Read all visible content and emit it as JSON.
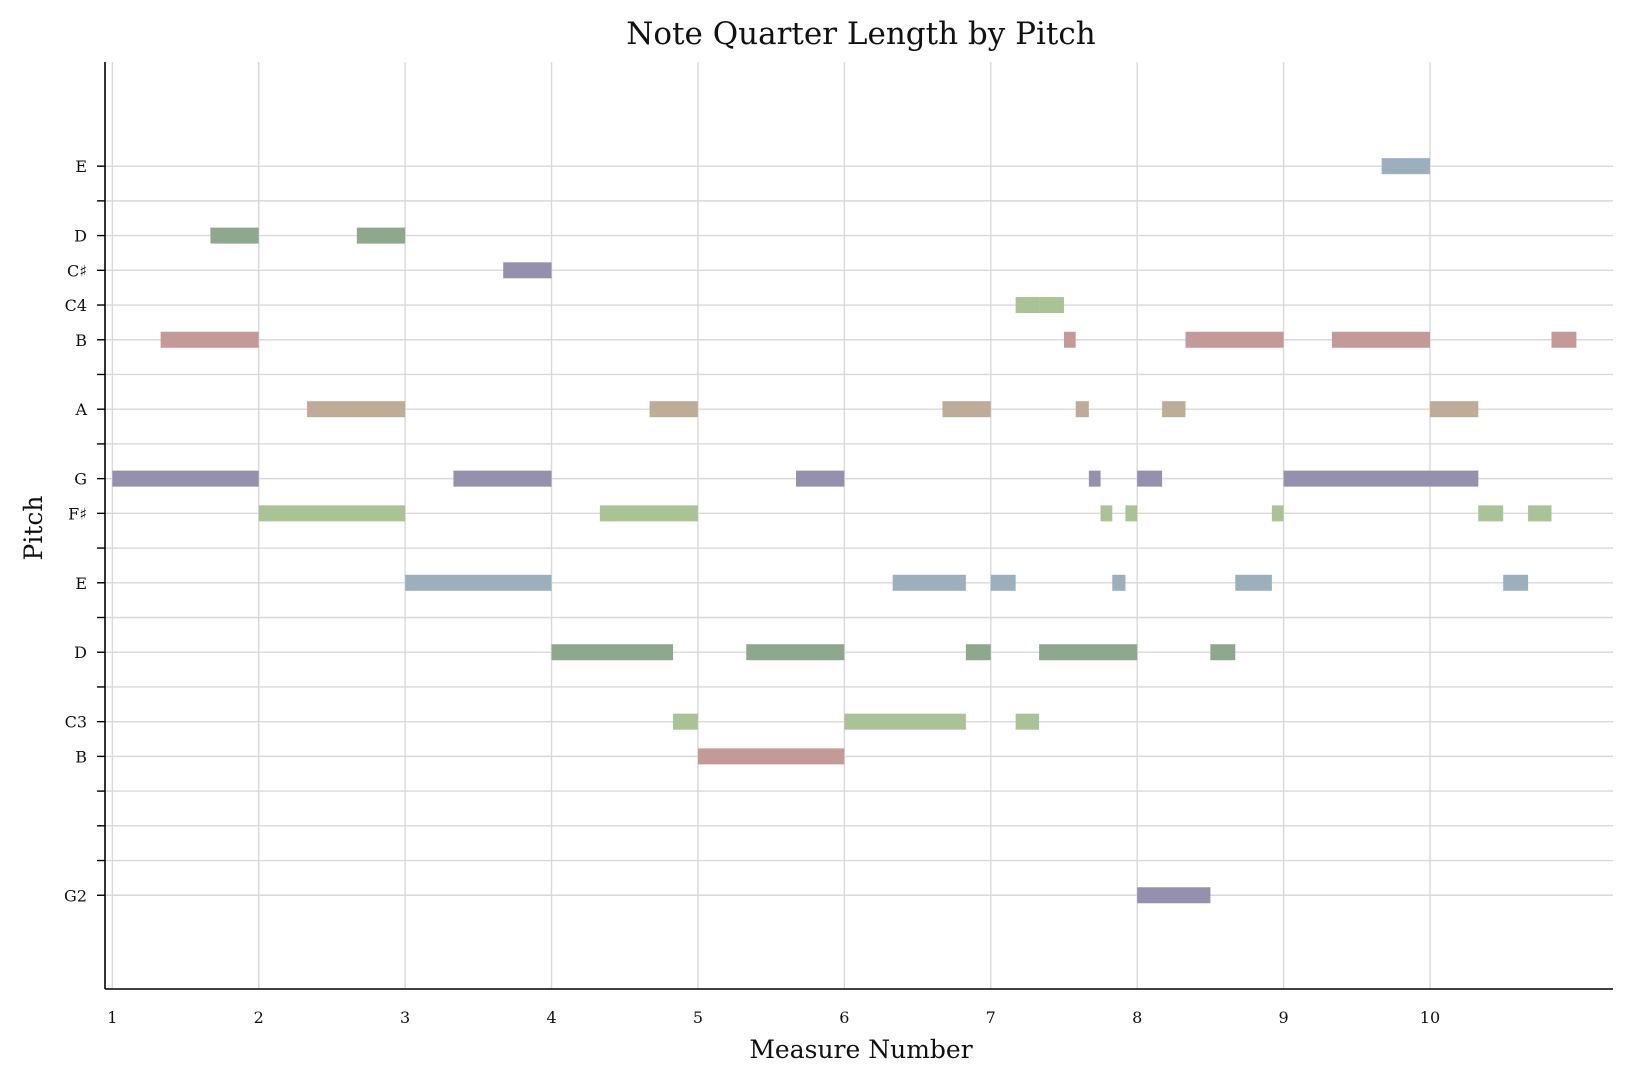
{
  "chart_data": {
    "type": "bar",
    "title": "Note Quarter Length by Pitch",
    "xlabel": "Measure Number",
    "ylabel": "Pitch",
    "grid": true,
    "xlim": [
      0.95,
      11.25
    ],
    "ylim": [
      -2.7,
      24.0
    ],
    "x_ticks": [
      {
        "value": 1.0,
        "label": "1"
      },
      {
        "value": 2.0,
        "label": "2"
      },
      {
        "value": 3.0,
        "label": "3"
      },
      {
        "value": 4.0,
        "label": "4"
      },
      {
        "value": 5.0,
        "label": "5"
      },
      {
        "value": 6.0,
        "label": "6"
      },
      {
        "value": 7.0,
        "label": "7"
      },
      {
        "value": 8.0,
        "label": "8"
      },
      {
        "value": 9.0,
        "label": "9"
      },
      {
        "value": 10.0,
        "label": "10"
      }
    ],
    "y_ticks": [
      {
        "value": 0,
        "label": "G2"
      },
      {
        "value": 1,
        "label": ""
      },
      {
        "value": 2,
        "label": ""
      },
      {
        "value": 3,
        "label": ""
      },
      {
        "value": 4,
        "label": "B"
      },
      {
        "value": 5,
        "label": "C3"
      },
      {
        "value": 6,
        "label": ""
      },
      {
        "value": 7,
        "label": "D"
      },
      {
        "value": 8,
        "label": ""
      },
      {
        "value": 9,
        "label": "E"
      },
      {
        "value": 10,
        "label": ""
      },
      {
        "value": 11,
        "label": "F♯"
      },
      {
        "value": 12,
        "label": "G"
      },
      {
        "value": 13,
        "label": ""
      },
      {
        "value": 14,
        "label": "A"
      },
      {
        "value": 15,
        "label": ""
      },
      {
        "value": 16,
        "label": "B"
      },
      {
        "value": 17,
        "label": "C4"
      },
      {
        "value": 18,
        "label": "C♯"
      },
      {
        "value": 19,
        "label": "D"
      },
      {
        "value": 20,
        "label": ""
      },
      {
        "value": 21,
        "label": "E"
      }
    ],
    "colors": {
      "B": "#c49a98",
      "C": "#a9c296",
      "D": "#8ea88e",
      "E": "#9cafbd",
      "F♯": "#a9c296",
      "G": "#9490ad",
      "A": "#bfac96",
      "C♯": "#9490ad"
    },
    "notes": [
      {
        "pitch": 21,
        "name": "E",
        "start": 9.67,
        "end": 10.0
      },
      {
        "pitch": 19,
        "name": "D",
        "start": 1.67,
        "end": 2.0
      },
      {
        "pitch": 19,
        "name": "D",
        "start": 2.67,
        "end": 3.0
      },
      {
        "pitch": 18,
        "name": "C♯",
        "start": 3.67,
        "end": 4.0
      },
      {
        "pitch": 17,
        "name": "C",
        "start": 7.17,
        "end": 7.33
      },
      {
        "pitch": 17,
        "name": "C",
        "start": 7.33,
        "end": 7.5
      },
      {
        "pitch": 16,
        "name": "B",
        "start": 1.33,
        "end": 2.0
      },
      {
        "pitch": 16,
        "name": "B",
        "start": 7.5,
        "end": 7.58
      },
      {
        "pitch": 16,
        "name": "B",
        "start": 8.33,
        "end": 9.0
      },
      {
        "pitch": 16,
        "name": "B",
        "start": 9.33,
        "end": 10.0
      },
      {
        "pitch": 16,
        "name": "B",
        "start": 10.83,
        "end": 11.0
      },
      {
        "pitch": 14,
        "name": "A",
        "start": 2.33,
        "end": 3.0
      },
      {
        "pitch": 14,
        "name": "A",
        "start": 4.67,
        "end": 5.0
      },
      {
        "pitch": 14,
        "name": "A",
        "start": 6.67,
        "end": 7.0
      },
      {
        "pitch": 14,
        "name": "A",
        "start": 7.58,
        "end": 7.67
      },
      {
        "pitch": 14,
        "name": "A",
        "start": 8.17,
        "end": 8.33
      },
      {
        "pitch": 14,
        "name": "A",
        "start": 10.0,
        "end": 10.33
      },
      {
        "pitch": 12,
        "name": "G",
        "start": 1.0,
        "end": 2.0
      },
      {
        "pitch": 12,
        "name": "G",
        "start": 3.33,
        "end": 4.0
      },
      {
        "pitch": 12,
        "name": "G",
        "start": 5.67,
        "end": 6.0
      },
      {
        "pitch": 12,
        "name": "G",
        "start": 7.67,
        "end": 7.75
      },
      {
        "pitch": 12,
        "name": "G",
        "start": 8.0,
        "end": 8.17
      },
      {
        "pitch": 12,
        "name": "G",
        "start": 9.0,
        "end": 10.0
      },
      {
        "pitch": 12,
        "name": "G",
        "start": 10.0,
        "end": 10.33
      },
      {
        "pitch": 11,
        "name": "F♯",
        "start": 2.0,
        "end": 3.0
      },
      {
        "pitch": 11,
        "name": "F♯",
        "start": 4.33,
        "end": 5.0
      },
      {
        "pitch": 11,
        "name": "F♯",
        "start": 7.75,
        "end": 7.83
      },
      {
        "pitch": 11,
        "name": "F♯",
        "start": 7.92,
        "end": 8.0
      },
      {
        "pitch": 11,
        "name": "F♯",
        "start": 8.92,
        "end": 9.0
      },
      {
        "pitch": 11,
        "name": "F♯",
        "start": 10.33,
        "end": 10.5
      },
      {
        "pitch": 11,
        "name": "F♯",
        "start": 10.67,
        "end": 10.83
      },
      {
        "pitch": 9,
        "name": "E",
        "start": 3.0,
        "end": 4.0
      },
      {
        "pitch": 9,
        "name": "E",
        "start": 6.33,
        "end": 6.83
      },
      {
        "pitch": 9,
        "name": "E",
        "start": 7.0,
        "end": 7.17
      },
      {
        "pitch": 9,
        "name": "E",
        "start": 7.83,
        "end": 7.92
      },
      {
        "pitch": 9,
        "name": "E",
        "start": 8.67,
        "end": 8.92
      },
      {
        "pitch": 9,
        "name": "E",
        "start": 10.5,
        "end": 10.67
      },
      {
        "pitch": 7,
        "name": "D",
        "start": 4.0,
        "end": 4.83
      },
      {
        "pitch": 7,
        "name": "D",
        "start": 5.33,
        "end": 6.0
      },
      {
        "pitch": 7,
        "name": "D",
        "start": 6.83,
        "end": 7.0
      },
      {
        "pitch": 7,
        "name": "D",
        "start": 7.33,
        "end": 8.0
      },
      {
        "pitch": 7,
        "name": "D",
        "start": 8.5,
        "end": 8.67
      },
      {
        "pitch": 5,
        "name": "C",
        "start": 4.83,
        "end": 5.0
      },
      {
        "pitch": 5,
        "name": "C",
        "start": 6.0,
        "end": 6.83
      },
      {
        "pitch": 5,
        "name": "C",
        "start": 7.17,
        "end": 7.33
      },
      {
        "pitch": 4,
        "name": "B",
        "start": 5.0,
        "end": 6.0
      },
      {
        "pitch": 0,
        "name": "G",
        "start": 8.0,
        "end": 8.5
      }
    ]
  }
}
